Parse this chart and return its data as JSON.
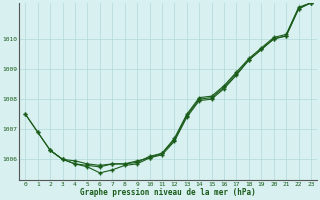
{
  "xlabel": "Graphe pression niveau de la mer (hPa)",
  "background_color": "#d8f0f0",
  "grid_color": "#b0d8d8",
  "line_color": "#1a5c1a",
  "xlim": [
    -0.5,
    23.5
  ],
  "ylim": [
    1005.3,
    1011.2
  ],
  "yticks": [
    1006,
    1007,
    1008,
    1009,
    1010
  ],
  "xticks": [
    0,
    1,
    2,
    3,
    4,
    5,
    6,
    7,
    8,
    9,
    10,
    11,
    12,
    13,
    14,
    15,
    16,
    17,
    18,
    19,
    20,
    21,
    22,
    23
  ],
  "line1_x": [
    0,
    1,
    2,
    3,
    4,
    5,
    6,
    7,
    8,
    9,
    10,
    11,
    12,
    13,
    14,
    15,
    16,
    17,
    18,
    19,
    20,
    21,
    22,
    23
  ],
  "line1_y": [
    1007.5,
    1006.9,
    1006.3,
    1006.0,
    1005.95,
    1005.85,
    1005.8,
    1005.85,
    1005.85,
    1005.9,
    1006.1,
    1006.2,
    1006.7,
    1007.5,
    1008.05,
    1008.1,
    1008.45,
    1008.9,
    1009.35,
    1009.7,
    1010.05,
    1010.15,
    1011.05,
    1011.2
  ],
  "line2_x": [
    0,
    1,
    2,
    3,
    4,
    5,
    6,
    7,
    8,
    9,
    10,
    11,
    12,
    13,
    14,
    15,
    16,
    17,
    18,
    19,
    20,
    21,
    22,
    23
  ],
  "line2_y": [
    1007.5,
    1006.9,
    1006.3,
    1006.0,
    1005.85,
    1005.8,
    1005.75,
    1005.85,
    1005.85,
    1005.95,
    1006.05,
    1006.2,
    1006.65,
    1007.45,
    1008.0,
    1008.05,
    1008.4,
    1008.85,
    1009.3,
    1009.65,
    1010.0,
    1010.1,
    1011.0,
    1011.2
  ],
  "line3_x": [
    2,
    3,
    4,
    5,
    6,
    7,
    8,
    9,
    10,
    11,
    12,
    13,
    14,
    15,
    16,
    17,
    18,
    19,
    20,
    21,
    22,
    23
  ],
  "line3_y": [
    1006.3,
    1006.0,
    1005.85,
    1005.75,
    1005.55,
    1005.65,
    1005.8,
    1005.85,
    1006.05,
    1006.15,
    1006.6,
    1007.4,
    1007.95,
    1008.0,
    1008.35,
    1008.8,
    1009.3,
    1009.65,
    1010.0,
    1010.1,
    1011.0,
    1011.2
  ]
}
